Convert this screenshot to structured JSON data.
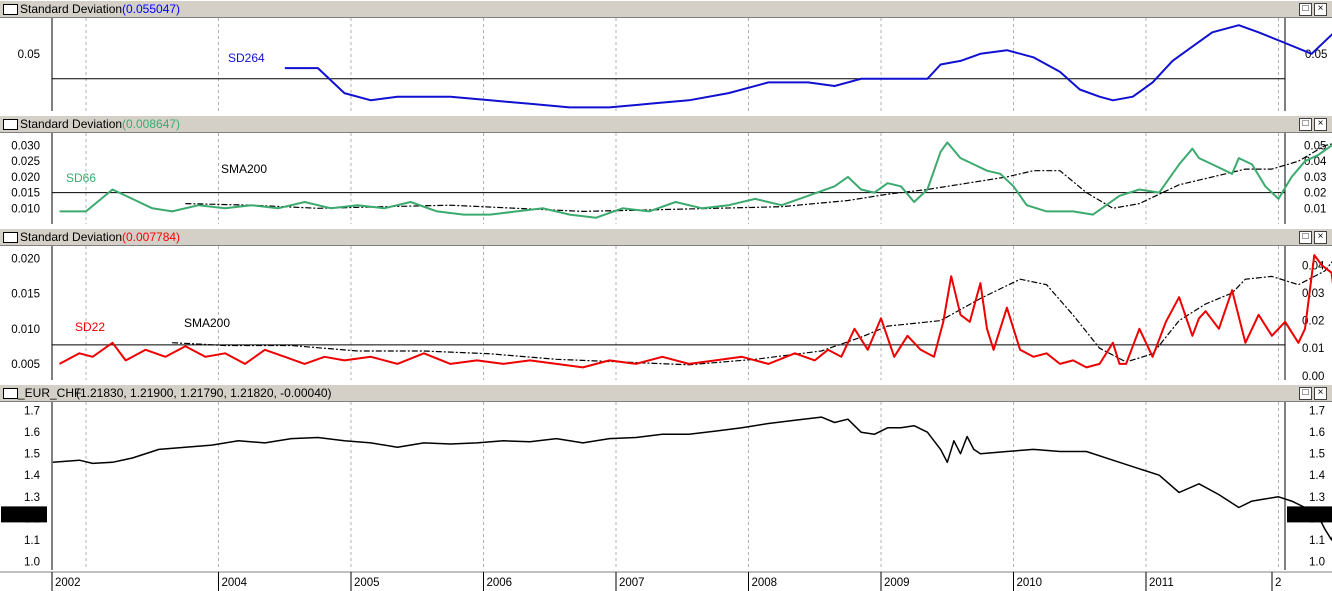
{
  "panes": [
    {
      "title": "Standard Deviation",
      "value": "(0.055047)",
      "value_color": "#0000ff"
    },
    {
      "title": "Standard Deviation",
      "value": "(0.008647)",
      "value_color": "#3caa6e"
    },
    {
      "title": "Standard Deviation",
      "value": "(0.007784)",
      "value_color": "#ff0000"
    },
    {
      "title": "_EUR_CHF",
      "value": "(1.21830, 1.21900, 1.21790, 1.21820, -0.00040)",
      "value_color": "#000000"
    }
  ],
  "window_buttons": {
    "restore": "□",
    "close": "×"
  },
  "price_tag": "1.21820",
  "x_axis_labels": [
    "2002",
    "2004",
    "2005",
    "2006",
    "2007",
    "2008",
    "2009",
    "2010",
    "2011",
    "2"
  ],
  "colors": {
    "sd264": "#1010d0",
    "sd66": "#3caa6e",
    "sd22": "#ee0000",
    "price": "#000000",
    "sma": "#000000",
    "bg": "#ffffff",
    "chrome": "#d4d0c8"
  },
  "chart_data": [
    {
      "type": "line",
      "title": "Standard Deviation (0.055047)",
      "series": [
        {
          "name": "SD264",
          "color": "#1010d0",
          "x": [
            2003.75,
            2004.0,
            2004.2,
            2004.4,
            2004.6,
            2004.8,
            2005.0,
            2005.3,
            2005.6,
            2005.9,
            2006.2,
            2006.5,
            2006.8,
            2007.1,
            2007.4,
            2007.7,
            2007.9,
            2008.1,
            2008.3,
            2008.6,
            2008.7,
            2008.85,
            2009.0,
            2009.2,
            2009.4,
            2009.6,
            2009.75,
            2009.9,
            2010.0,
            2010.15,
            2010.3,
            2010.45,
            2010.6,
            2010.75,
            2010.95,
            2011.1,
            2011.3,
            2011.5,
            2011.7,
            2011.85,
            2011.95
          ],
          "values": [
            0.046,
            0.046,
            0.039,
            0.037,
            0.038,
            0.038,
            0.038,
            0.037,
            0.036,
            0.035,
            0.035,
            0.036,
            0.037,
            0.039,
            0.042,
            0.042,
            0.041,
            0.043,
            0.043,
            0.043,
            0.047,
            0.048,
            0.05,
            0.051,
            0.049,
            0.045,
            0.04,
            0.038,
            0.037,
            0.038,
            0.042,
            0.048,
            0.052,
            0.056,
            0.058,
            0.056,
            0.053,
            0.05,
            0.057,
            0.054,
            0.052
          ]
        }
      ],
      "y_ticks": [
        0.05
      ],
      "reference_line": 0.043,
      "ylim": [
        0.034,
        0.06
      ],
      "annotations": [
        "SD264"
      ]
    },
    {
      "type": "line",
      "title": "Standard Deviation (0.008647)",
      "series": [
        {
          "name": "SD66",
          "color": "#3caa6e",
          "x": [
            2002.05,
            2002.25,
            2002.45,
            2002.6,
            2002.75,
            2002.9,
            2003.1,
            2003.3,
            2003.5,
            2003.7,
            2003.9,
            2004.1,
            2004.3,
            2004.5,
            2004.7,
            2004.9,
            2005.1,
            2005.3,
            2005.5,
            2005.7,
            2005.9,
            2006.1,
            2006.3,
            2006.5,
            2006.7,
            2006.9,
            2007.1,
            2007.3,
            2007.5,
            2007.7,
            2007.9,
            2008.0,
            2008.1,
            2008.2,
            2008.3,
            2008.4,
            2008.5,
            2008.6,
            2008.7,
            2008.75,
            2008.85,
            2008.95,
            2009.05,
            2009.15,
            2009.25,
            2009.35,
            2009.5,
            2009.7,
            2009.85,
            2009.95,
            2010.05,
            2010.2,
            2010.35,
            2010.5,
            2010.6,
            2010.65,
            2010.75,
            2010.9,
            2010.95,
            2011.05,
            2011.15,
            2011.25,
            2011.35,
            2011.45,
            2011.55,
            2011.65,
            2011.7,
            2011.78,
            2011.85,
            2011.93
          ],
          "values": [
            0.009,
            0.009,
            0.016,
            0.013,
            0.01,
            0.009,
            0.011,
            0.01,
            0.011,
            0.01,
            0.012,
            0.01,
            0.011,
            0.01,
            0.012,
            0.009,
            0.008,
            0.008,
            0.009,
            0.01,
            0.008,
            0.007,
            0.01,
            0.009,
            0.012,
            0.01,
            0.011,
            0.013,
            0.011,
            0.014,
            0.017,
            0.02,
            0.016,
            0.015,
            0.018,
            0.017,
            0.012,
            0.016,
            0.028,
            0.031,
            0.026,
            0.024,
            0.022,
            0.021,
            0.017,
            0.011,
            0.009,
            0.009,
            0.008,
            0.011,
            0.014,
            0.016,
            0.015,
            0.024,
            0.029,
            0.026,
            0.024,
            0.021,
            0.026,
            0.024,
            0.017,
            0.013,
            0.02,
            0.025,
            0.027,
            0.03,
            0.033,
            0.032,
            0.02,
            0.009
          ]
        },
        {
          "name": "SMA200",
          "color": "#000000",
          "x": [
            2003.0,
            2003.5,
            2004.0,
            2004.5,
            2005.0,
            2005.5,
            2006.0,
            2006.5,
            2007.0,
            2007.5,
            2008.0,
            2008.3,
            2008.6,
            2008.9,
            2009.2,
            2009.4,
            2009.6,
            2009.8,
            2010.0,
            2010.2,
            2010.5,
            2010.8,
            2011.0,
            2011.2,
            2011.4,
            2011.6,
            2011.8,
            2011.93
          ],
          "values": [
            0.013,
            0.012,
            0.01,
            0.011,
            0.012,
            0.01,
            0.008,
            0.009,
            0.01,
            0.011,
            0.015,
            0.019,
            0.022,
            0.026,
            0.03,
            0.034,
            0.034,
            0.02,
            0.01,
            0.013,
            0.025,
            0.031,
            0.035,
            0.035,
            0.04,
            0.05,
            0.054,
            0.053
          ]
        }
      ],
      "y_ticks_left": [
        0.01,
        0.015,
        0.02,
        0.025,
        0.03
      ],
      "y_ticks_right": [
        0.01,
        0.02,
        0.03,
        0.04,
        0.05
      ],
      "reference_line": 0.015,
      "ylim_left": [
        0.005,
        0.034
      ],
      "ylim_right": [
        0.0,
        0.058
      ],
      "annotations": [
        "SD66",
        "SMA200"
      ]
    },
    {
      "type": "line",
      "title": "Standard Deviation (0.007784)",
      "series": [
        {
          "name": "SD22",
          "color": "#ee0000",
          "x": [
            2002.05,
            2002.2,
            2002.3,
            2002.45,
            2002.55,
            2002.7,
            2002.85,
            2003.0,
            2003.15,
            2003.3,
            2003.45,
            2003.6,
            2003.75,
            2003.9,
            2004.05,
            2004.2,
            2004.4,
            2004.6,
            2004.8,
            2005.0,
            2005.2,
            2005.4,
            2005.6,
            2005.8,
            2006.0,
            2006.2,
            2006.4,
            2006.6,
            2006.8,
            2007.0,
            2007.2,
            2007.4,
            2007.6,
            2007.75,
            2007.85,
            2007.95,
            2008.05,
            2008.15,
            2008.25,
            2008.35,
            2008.45,
            2008.55,
            2008.65,
            2008.72,
            2008.78,
            2008.85,
            2008.92,
            2009.0,
            2009.05,
            2009.1,
            2009.2,
            2009.3,
            2009.4,
            2009.5,
            2009.6,
            2009.7,
            2009.8,
            2009.9,
            2010.0,
            2010.05,
            2010.1,
            2010.2,
            2010.3,
            2010.4,
            2010.5,
            2010.6,
            2010.65,
            2010.7,
            2010.8,
            2010.9,
            2011.0,
            2011.1,
            2011.2,
            2011.3,
            2011.4,
            2011.45,
            2011.52,
            2011.58,
            2011.65,
            2011.72,
            2011.8,
            2011.93
          ],
          "values": [
            0.005,
            0.0065,
            0.006,
            0.008,
            0.0055,
            0.007,
            0.006,
            0.0075,
            0.006,
            0.0065,
            0.005,
            0.007,
            0.006,
            0.005,
            0.006,
            0.0055,
            0.006,
            0.005,
            0.0065,
            0.005,
            0.0055,
            0.005,
            0.0055,
            0.005,
            0.0045,
            0.0055,
            0.005,
            0.006,
            0.005,
            0.0055,
            0.006,
            0.005,
            0.0065,
            0.0055,
            0.007,
            0.006,
            0.01,
            0.007,
            0.0115,
            0.006,
            0.009,
            0.007,
            0.006,
            0.011,
            0.0175,
            0.012,
            0.011,
            0.0165,
            0.01,
            0.007,
            0.013,
            0.007,
            0.006,
            0.0065,
            0.005,
            0.0055,
            0.0045,
            0.005,
            0.008,
            0.005,
            0.005,
            0.01,
            0.006,
            0.011,
            0.0145,
            0.009,
            0.0115,
            0.0125,
            0.01,
            0.0155,
            0.008,
            0.012,
            0.009,
            0.011,
            0.008,
            0.01,
            0.0205,
            0.019,
            0.018,
            0.008,
            0.0075,
            0.0065
          ]
        },
        {
          "name": "SMA200",
          "color": "#000000",
          "x": [
            2002.9,
            2003.3,
            2003.8,
            2004.3,
            2004.8,
            2005.3,
            2005.8,
            2006.3,
            2006.8,
            2007.3,
            2007.8,
            2008.1,
            2008.3,
            2008.5,
            2008.7,
            2009.0,
            2009.3,
            2009.5,
            2009.7,
            2009.9,
            2010.1,
            2010.3,
            2010.5,
            2010.7,
            2010.9,
            2011.0,
            2011.2,
            2011.4,
            2011.6,
            2011.7,
            2011.93
          ],
          "values": [
            0.012,
            0.011,
            0.011,
            0.009,
            0.009,
            0.008,
            0.006,
            0.005,
            0.004,
            0.006,
            0.009,
            0.014,
            0.018,
            0.019,
            0.02,
            0.028,
            0.035,
            0.033,
            0.022,
            0.01,
            0.005,
            0.008,
            0.02,
            0.026,
            0.03,
            0.035,
            0.036,
            0.033,
            0.038,
            0.044,
            0.04
          ]
        }
      ],
      "y_ticks_left": [
        0.005,
        0.01,
        0.015,
        0.02
      ],
      "y_ticks_right": [
        0.0,
        0.01,
        0.02,
        0.03,
        0.04
      ],
      "reference_line": 0.0077,
      "ylim_left": [
        0.0027,
        0.0218
      ],
      "ylim_right": [
        -0.0015,
        0.047
      ],
      "annotations": [
        "SD22",
        "SMA200"
      ]
    },
    {
      "type": "line",
      "title": "_EUR_CHF (1.21830, 1.21900, 1.21790, 1.21820, -0.00040)",
      "series": [
        {
          "name": "_EUR_CHF",
          "color": "#000000",
          "x": [
            2002.0,
            2002.1,
            2002.2,
            2002.3,
            2002.45,
            2002.6,
            2002.8,
            2003.0,
            2003.2,
            2003.4,
            2003.6,
            2003.8,
            2004.0,
            2004.2,
            2004.4,
            2004.6,
            2004.8,
            2005.0,
            2005.2,
            2005.4,
            2005.6,
            2005.8,
            2006.0,
            2006.2,
            2006.4,
            2006.6,
            2006.8,
            2007.0,
            2007.2,
            2007.4,
            2007.6,
            2007.8,
            2007.9,
            2008.0,
            2008.1,
            2008.2,
            2008.3,
            2008.4,
            2008.5,
            2008.6,
            2008.7,
            2008.75,
            2008.8,
            2008.85,
            2008.9,
            2008.95,
            2009.0,
            2009.2,
            2009.4,
            2009.6,
            2009.8,
            2010.0,
            2010.2,
            2010.35,
            2010.5,
            2010.65,
            2010.8,
            2010.95,
            2011.05,
            2011.15,
            2011.25,
            2011.35,
            2011.45,
            2011.55,
            2011.6,
            2011.65,
            2011.7,
            2011.8,
            2011.93
          ],
          "values": [
            1.46,
            1.465,
            1.47,
            1.455,
            1.46,
            1.48,
            1.52,
            1.53,
            1.54,
            1.56,
            1.55,
            1.57,
            1.575,
            1.56,
            1.55,
            1.53,
            1.55,
            1.545,
            1.55,
            1.56,
            1.555,
            1.57,
            1.55,
            1.57,
            1.575,
            1.59,
            1.59,
            1.605,
            1.62,
            1.64,
            1.655,
            1.67,
            1.645,
            1.66,
            1.6,
            1.59,
            1.62,
            1.62,
            1.63,
            1.6,
            1.52,
            1.46,
            1.56,
            1.5,
            1.58,
            1.52,
            1.5,
            1.51,
            1.52,
            1.51,
            1.51,
            1.47,
            1.43,
            1.4,
            1.32,
            1.36,
            1.31,
            1.25,
            1.28,
            1.29,
            1.3,
            1.28,
            1.25,
            1.21,
            1.15,
            1.1,
            1.19,
            1.21,
            1.2182
          ]
        }
      ],
      "y_ticks": [
        1.0,
        1.1,
        1.2,
        1.3,
        1.4,
        1.5,
        1.6,
        1.7
      ],
      "ylim": [
        0.96,
        1.74
      ],
      "last_value": 1.2182
    }
  ]
}
